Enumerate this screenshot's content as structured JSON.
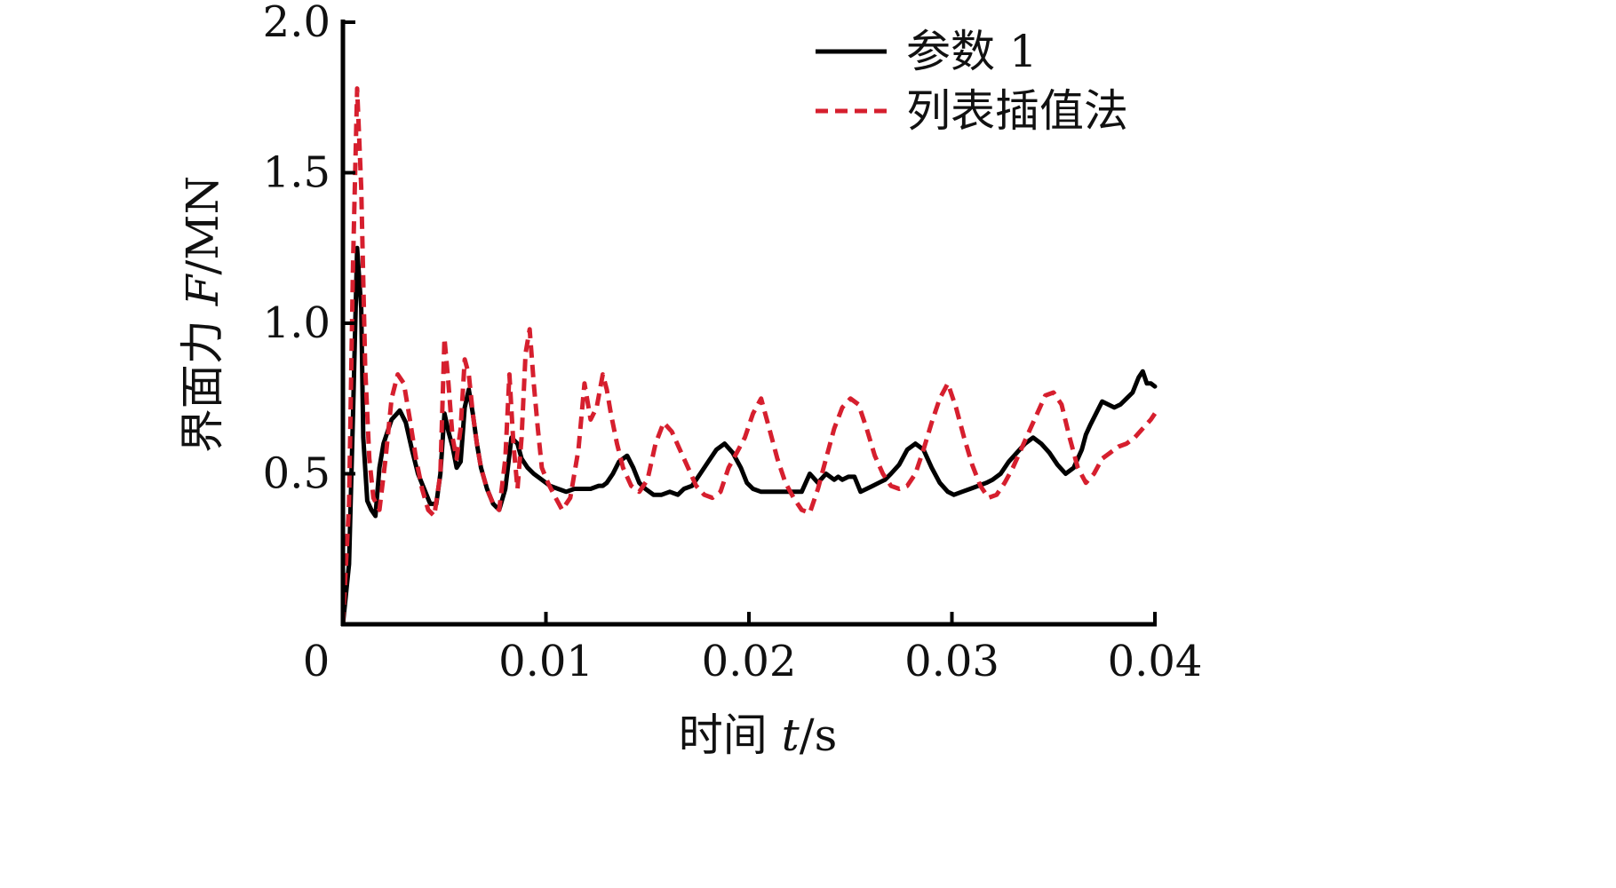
{
  "chart_data": {
    "type": "line",
    "xlabel_parts": [
      "时间 ",
      "t",
      "/s"
    ],
    "ylabel_parts": [
      "界面力 ",
      "F",
      "/MN"
    ],
    "xlim": [
      0,
      0.04
    ],
    "ylim": [
      0,
      2.0
    ],
    "x_ticks": [
      {
        "value": 0,
        "label": "0"
      },
      {
        "value": 0.01,
        "label": "0.01"
      },
      {
        "value": 0.02,
        "label": "0.02"
      },
      {
        "value": 0.03,
        "label": "0.03"
      },
      {
        "value": 0.04,
        "label": "0.04"
      }
    ],
    "y_ticks": [
      {
        "value": 0.5,
        "label": "0.5"
      },
      {
        "value": 1.0,
        "label": "1.0"
      },
      {
        "value": 1.5,
        "label": "1.5"
      },
      {
        "value": 2.0,
        "label": "2.0"
      }
    ],
    "legend_position": "top-right",
    "grid": false,
    "series": [
      {
        "name": "参数 1",
        "color": "#000000",
        "dash": "solid",
        "x": [
          0,
          0.0003,
          0.0005,
          0.0007,
          0.0009,
          0.001,
          0.0012,
          0.0014,
          0.0016,
          0.0018,
          0.002,
          0.0024,
          0.0028,
          0.0031,
          0.0034,
          0.0037,
          0.004,
          0.0043,
          0.0046,
          0.0048,
          0.005,
          0.0052,
          0.0054,
          0.0056,
          0.0058,
          0.006,
          0.0062,
          0.0064,
          0.0066,
          0.0068,
          0.0071,
          0.0074,
          0.0077,
          0.008,
          0.0083,
          0.0086,
          0.0088,
          0.0091,
          0.0094,
          0.0098,
          0.0102,
          0.0106,
          0.011,
          0.0114,
          0.0118,
          0.0122,
          0.0126,
          0.0128,
          0.013,
          0.0133,
          0.0136,
          0.014,
          0.0143,
          0.0146,
          0.0149,
          0.0153,
          0.0157,
          0.0161,
          0.0165,
          0.0168,
          0.0172,
          0.0176,
          0.018,
          0.0184,
          0.0188,
          0.0192,
          0.0196,
          0.0199,
          0.0202,
          0.0206,
          0.021,
          0.0214,
          0.0218,
          0.0222,
          0.0226,
          0.023,
          0.0234,
          0.0238,
          0.0242,
          0.0244,
          0.0246,
          0.0249,
          0.0252,
          0.0255,
          0.0258,
          0.0261,
          0.0264,
          0.0267,
          0.027,
          0.0274,
          0.0278,
          0.0282,
          0.0286,
          0.029,
          0.0294,
          0.0298,
          0.0301,
          0.0305,
          0.0309,
          0.0313,
          0.0317,
          0.032,
          0.0324,
          0.0328,
          0.0332,
          0.0336,
          0.034,
          0.0344,
          0.0348,
          0.0352,
          0.0356,
          0.036,
          0.0364,
          0.0366,
          0.0368,
          0.0371,
          0.0374,
          0.0377,
          0.038,
          0.0383,
          0.0386,
          0.0389,
          0.0392,
          0.0394,
          0.0396,
          0.0398,
          0.04
        ],
        "y": [
          0,
          0.2,
          0.7,
          1.25,
          1.05,
          0.62,
          0.41,
          0.38,
          0.36,
          0.52,
          0.6,
          0.68,
          0.71,
          0.67,
          0.58,
          0.5,
          0.45,
          0.4,
          0.4,
          0.5,
          0.7,
          0.64,
          0.59,
          0.52,
          0.54,
          0.72,
          0.78,
          0.7,
          0.6,
          0.52,
          0.45,
          0.4,
          0.38,
          0.45,
          0.62,
          0.6,
          0.55,
          0.52,
          0.5,
          0.48,
          0.46,
          0.45,
          0.44,
          0.45,
          0.45,
          0.45,
          0.46,
          0.46,
          0.47,
          0.5,
          0.54,
          0.56,
          0.52,
          0.47,
          0.45,
          0.43,
          0.43,
          0.44,
          0.43,
          0.45,
          0.46,
          0.5,
          0.54,
          0.58,
          0.6,
          0.57,
          0.52,
          0.47,
          0.45,
          0.44,
          0.44,
          0.44,
          0.44,
          0.44,
          0.44,
          0.5,
          0.47,
          0.5,
          0.48,
          0.49,
          0.48,
          0.49,
          0.49,
          0.44,
          0.45,
          0.46,
          0.47,
          0.48,
          0.5,
          0.53,
          0.58,
          0.6,
          0.58,
          0.52,
          0.47,
          0.44,
          0.43,
          0.44,
          0.45,
          0.46,
          0.47,
          0.48,
          0.5,
          0.54,
          0.57,
          0.6,
          0.62,
          0.6,
          0.57,
          0.53,
          0.5,
          0.52,
          0.58,
          0.63,
          0.66,
          0.7,
          0.74,
          0.73,
          0.72,
          0.73,
          0.75,
          0.77,
          0.82,
          0.84,
          0.8,
          0.8,
          0.79
        ]
      },
      {
        "name": "列表插值法",
        "color": "#d61f2e",
        "dash": "dashed",
        "x": [
          0,
          0.0003,
          0.0005,
          0.0007,
          0.0009,
          0.0011,
          0.0013,
          0.0015,
          0.0018,
          0.0021,
          0.0024,
          0.0027,
          0.003,
          0.0033,
          0.0036,
          0.0039,
          0.0042,
          0.0045,
          0.0048,
          0.005,
          0.0052,
          0.0054,
          0.0056,
          0.0058,
          0.006,
          0.0062,
          0.0064,
          0.0066,
          0.0068,
          0.0071,
          0.0074,
          0.0077,
          0.008,
          0.0082,
          0.0084,
          0.0086,
          0.0088,
          0.009,
          0.0092,
          0.0094,
          0.0096,
          0.0098,
          0.0101,
          0.0104,
          0.0108,
          0.0112,
          0.0116,
          0.0119,
          0.0122,
          0.0125,
          0.0128,
          0.013,
          0.0132,
          0.0135,
          0.0138,
          0.0142,
          0.0146,
          0.015,
          0.0154,
          0.0158,
          0.0162,
          0.0166,
          0.017,
          0.0174,
          0.0178,
          0.0182,
          0.0186,
          0.019,
          0.0194,
          0.0198,
          0.0202,
          0.0206,
          0.021,
          0.0214,
          0.0218,
          0.0222,
          0.0226,
          0.023,
          0.0234,
          0.0238,
          0.0242,
          0.0246,
          0.025,
          0.0254,
          0.0258,
          0.0262,
          0.0266,
          0.027,
          0.0274,
          0.0278,
          0.0282,
          0.0286,
          0.029,
          0.0294,
          0.0298,
          0.0302,
          0.0306,
          0.031,
          0.0314,
          0.0318,
          0.0322,
          0.0326,
          0.033,
          0.0334,
          0.0338,
          0.0342,
          0.0346,
          0.035,
          0.0354,
          0.0358,
          0.0362,
          0.0366,
          0.037,
          0.0374,
          0.0378,
          0.0382,
          0.0386,
          0.039,
          0.0394,
          0.0398,
          0.04
        ],
        "y": [
          0,
          0.4,
          1.2,
          1.78,
          1.45,
          0.85,
          0.55,
          0.42,
          0.38,
          0.55,
          0.75,
          0.83,
          0.8,
          0.68,
          0.55,
          0.45,
          0.38,
          0.36,
          0.5,
          0.95,
          0.8,
          0.62,
          0.55,
          0.65,
          0.88,
          0.83,
          0.7,
          0.6,
          0.52,
          0.45,
          0.4,
          0.38,
          0.55,
          0.83,
          0.6,
          0.45,
          0.62,
          0.9,
          0.98,
          0.8,
          0.65,
          0.52,
          0.47,
          0.43,
          0.38,
          0.42,
          0.58,
          0.8,
          0.68,
          0.72,
          0.83,
          0.78,
          0.7,
          0.6,
          0.52,
          0.46,
          0.44,
          0.48,
          0.6,
          0.67,
          0.64,
          0.58,
          0.52,
          0.46,
          0.43,
          0.42,
          0.44,
          0.52,
          0.57,
          0.62,
          0.7,
          0.75,
          0.65,
          0.55,
          0.47,
          0.42,
          0.38,
          0.37,
          0.45,
          0.55,
          0.65,
          0.72,
          0.75,
          0.73,
          0.65,
          0.56,
          0.5,
          0.46,
          0.45,
          0.46,
          0.5,
          0.58,
          0.67,
          0.75,
          0.8,
          0.72,
          0.62,
          0.53,
          0.46,
          0.42,
          0.43,
          0.47,
          0.52,
          0.58,
          0.64,
          0.7,
          0.76,
          0.77,
          0.73,
          0.62,
          0.52,
          0.47,
          0.5,
          0.55,
          0.57,
          0.59,
          0.6,
          0.62,
          0.65,
          0.68,
          0.7
        ]
      }
    ]
  }
}
